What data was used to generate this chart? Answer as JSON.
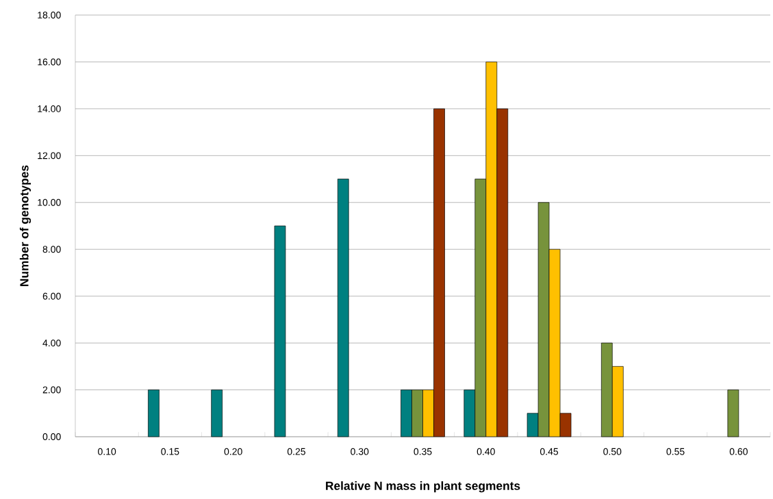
{
  "chart_data": {
    "type": "bar",
    "xlabel": "Relative N mass in plant segments",
    "ylabel": "Number of genotypes",
    "categories": [
      "0.10",
      "0.15",
      "0.20",
      "0.25",
      "0.30",
      "0.35",
      "0.40",
      "0.45",
      "0.50",
      "0.55",
      "0.60"
    ],
    "series": [
      {
        "color": "#008080",
        "values": [
          null,
          2,
          2,
          9,
          11,
          2,
          2,
          1,
          null,
          null,
          null
        ]
      },
      {
        "color": "#77933c",
        "values": [
          null,
          null,
          null,
          null,
          null,
          2,
          11,
          10,
          4,
          null,
          2
        ]
      },
      {
        "color": "#ffc000",
        "values": [
          null,
          null,
          null,
          null,
          null,
          2,
          16,
          8,
          3,
          null,
          null
        ]
      },
      {
        "color": "#993300",
        "values": [
          null,
          null,
          null,
          null,
          null,
          14,
          14,
          1,
          null,
          null,
          null
        ]
      }
    ],
    "ylim": [
      0,
      18
    ],
    "yticks": [
      {
        "value": 0,
        "label": "0.00"
      },
      {
        "value": 2,
        "label": "2.00"
      },
      {
        "value": 4,
        "label": "4.00"
      },
      {
        "value": 6,
        "label": "6.00"
      },
      {
        "value": 8,
        "label": "8.00"
      },
      {
        "value": 10,
        "label": "10.00"
      },
      {
        "value": 12,
        "label": "12.00"
      },
      {
        "value": 14,
        "label": "14.00"
      },
      {
        "value": 16,
        "label": "16.00"
      },
      {
        "value": 18,
        "label": "18.00"
      }
    ],
    "grid": "y"
  }
}
